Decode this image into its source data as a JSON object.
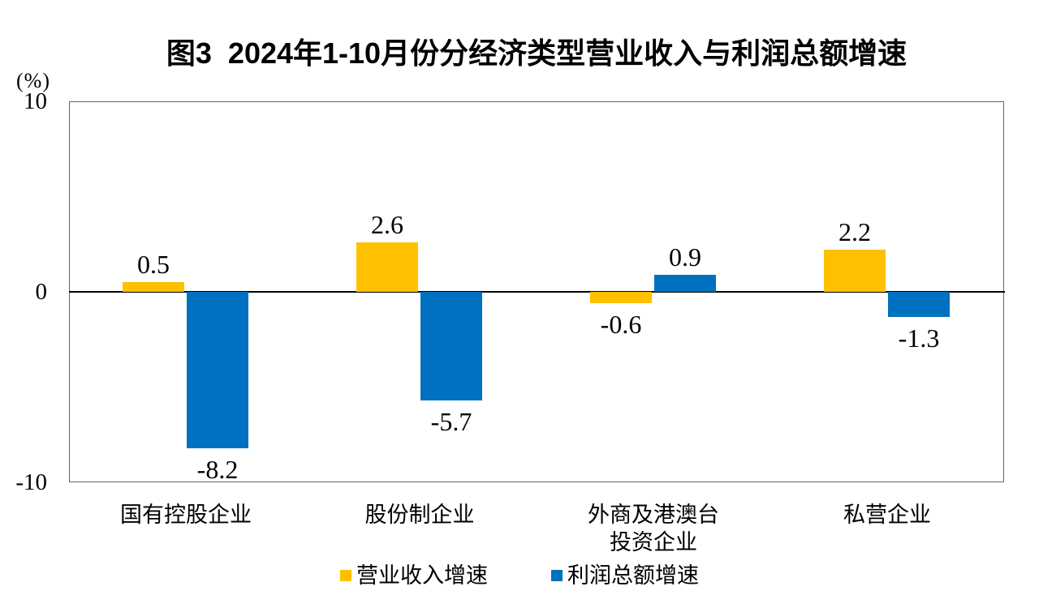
{
  "chart_data": {
    "type": "bar",
    "title": "图3  2024年1-10月份分经济类型营业收入与利润总额增速",
    "categories": [
      "国有控股企业",
      "股份制企业",
      "外商及港澳台\n投资企业",
      "私营企业"
    ],
    "series": [
      {
        "name": "营业收入增速",
        "color": "#FFC000",
        "values": [
          0.5,
          2.6,
          -0.6,
          2.2
        ]
      },
      {
        "name": "利润总额增速",
        "color": "#0070C0",
        "values": [
          -8.2,
          -5.7,
          0.9,
          -1.3
        ]
      }
    ],
    "ylabel": "(%)",
    "ylim": [
      -10,
      10
    ],
    "yticks": [
      10,
      0,
      -10
    ],
    "grid": false,
    "legend_position": "bottom",
    "data_labels": "outside-end",
    "value_decimals": 1
  },
  "colors": {
    "background": "#ffffff",
    "plot_border": "#666666",
    "zero_line": "#000000",
    "text": "#000000",
    "series_revenue": "#FFC000",
    "series_profit": "#0070C0"
  }
}
